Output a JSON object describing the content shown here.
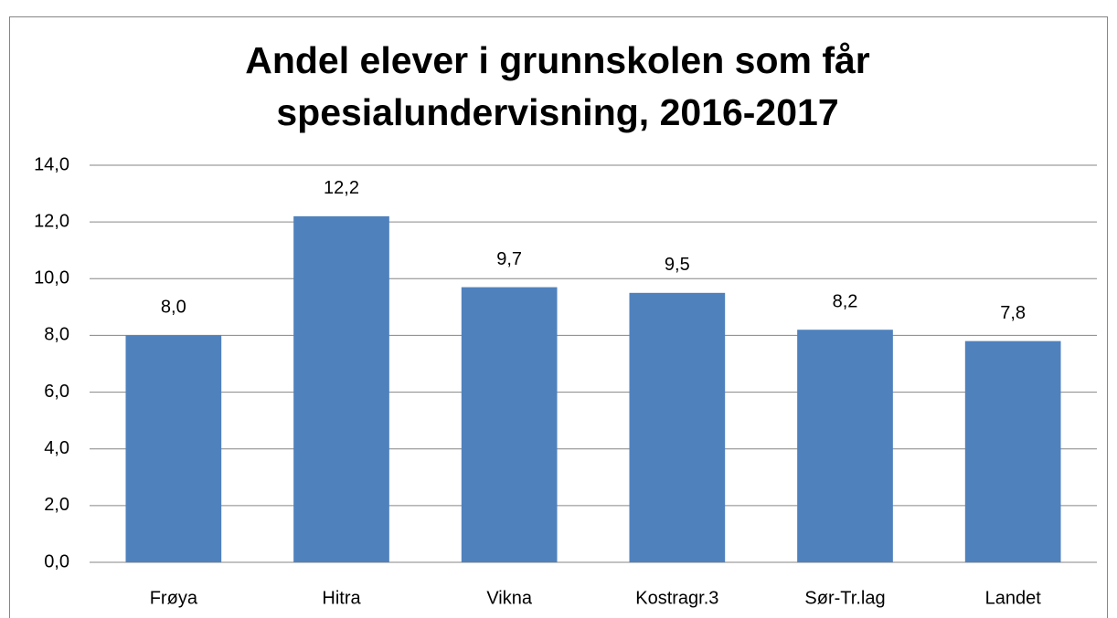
{
  "chart_data": {
    "type": "bar",
    "title": "Andel elever i grunnskolen som får spesialundervisning, 2016-2017",
    "categories": [
      "Frøya",
      "Hitra",
      "Vikna",
      "Kostragr.3",
      "Sør-Tr.lag",
      "Landet"
    ],
    "values": [
      8.0,
      12.2,
      9.7,
      9.5,
      8.2,
      7.8
    ],
    "value_labels": [
      "8,0",
      "12,2",
      "9,7",
      "9,5",
      "8,2",
      "7,8"
    ],
    "color": "#4f81bd",
    "ylim": [
      0,
      14
    ],
    "yticks": [
      {
        "value": 0,
        "label": "0,0"
      },
      {
        "value": 2,
        "label": "2,0"
      },
      {
        "value": 4,
        "label": "4,0"
      },
      {
        "value": 6,
        "label": "6,0"
      },
      {
        "value": 8,
        "label": "8,0"
      },
      {
        "value": 10,
        "label": "10,0"
      },
      {
        "value": 12,
        "label": "12,0"
      },
      {
        "value": 14,
        "label": "14,0"
      }
    ],
    "grid": true
  }
}
